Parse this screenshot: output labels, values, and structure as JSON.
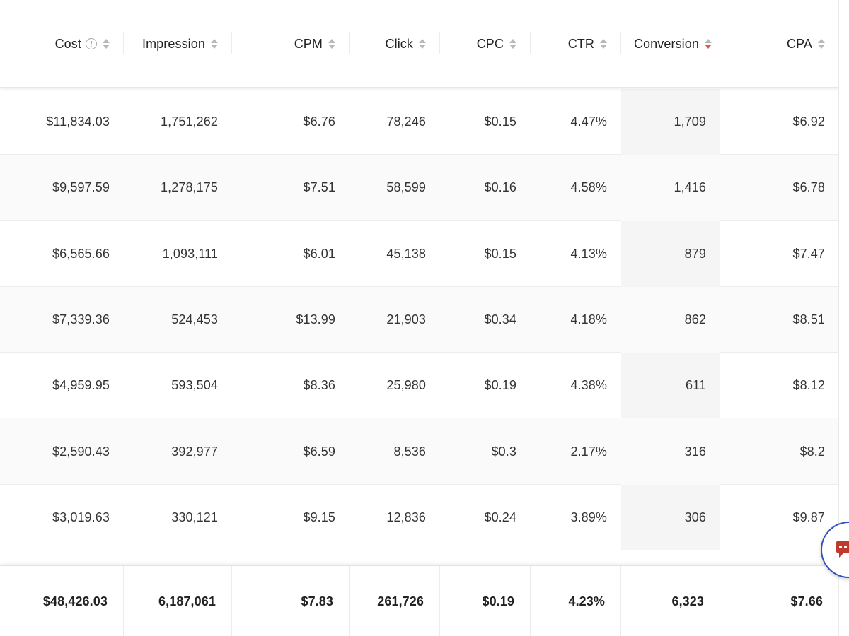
{
  "header": {
    "columns": [
      {
        "label": "Cost",
        "info": true,
        "sort": "none"
      },
      {
        "label": "Impression",
        "sort": "none"
      },
      {
        "label": "CPM",
        "sort": "none"
      },
      {
        "label": "Click",
        "sort": "none"
      },
      {
        "label": "CPC",
        "sort": "none"
      },
      {
        "label": "CTR",
        "sort": "none"
      },
      {
        "label": "Conversion",
        "sort": "descending"
      },
      {
        "label": "CPA",
        "sort": "none"
      }
    ]
  },
  "rows": [
    {
      "cost": "$11,834.03",
      "impression": "1,751,262",
      "cpm": "$6.76",
      "click": "78,246",
      "cpc": "$0.15",
      "ctr": "4.47%",
      "conversion": "1,709",
      "cpa": "$6.92"
    },
    {
      "cost": "$9,597.59",
      "impression": "1,278,175",
      "cpm": "$7.51",
      "click": "58,599",
      "cpc": "$0.16",
      "ctr": "4.58%",
      "conversion": "1,416",
      "cpa": "$6.78"
    },
    {
      "cost": "$6,565.66",
      "impression": "1,093,111",
      "cpm": "$6.01",
      "click": "45,138",
      "cpc": "$0.15",
      "ctr": "4.13%",
      "conversion": "879",
      "cpa": "$7.47"
    },
    {
      "cost": "$7,339.36",
      "impression": "524,453",
      "cpm": "$13.99",
      "click": "21,903",
      "cpc": "$0.34",
      "ctr": "4.18%",
      "conversion": "862",
      "cpa": "$8.51"
    },
    {
      "cost": "$4,959.95",
      "impression": "593,504",
      "cpm": "$8.36",
      "click": "25,980",
      "cpc": "$0.19",
      "ctr": "4.38%",
      "conversion": "611",
      "cpa": "$8.12"
    },
    {
      "cost": "$2,590.43",
      "impression": "392,977",
      "cpm": "$6.59",
      "click": "8,536",
      "cpc": "$0.3",
      "ctr": "2.17%",
      "conversion": "316",
      "cpa": "$8.2"
    },
    {
      "cost": "$3,019.63",
      "impression": "330,121",
      "cpm": "$9.15",
      "click": "12,836",
      "cpc": "$0.24",
      "ctr": "3.89%",
      "conversion": "306",
      "cpa": "$9.87"
    }
  ],
  "totals": {
    "cost": "$48,426.03",
    "impression": "6,187,061",
    "cpm": "$7.83",
    "click": "261,726",
    "cpc": "$0.19",
    "ctr": "4.23%",
    "conversion": "6,323",
    "cpa": "$7.66"
  },
  "icons": {
    "info": "info-icon",
    "sort": "sort-icon",
    "chat": "chat-icon"
  },
  "colors": {
    "sort_active": "#e05a4a",
    "sort_inactive": "#b8b8b8",
    "chat_border": "#2f4ec0",
    "chat_icon": "#c0392b"
  }
}
